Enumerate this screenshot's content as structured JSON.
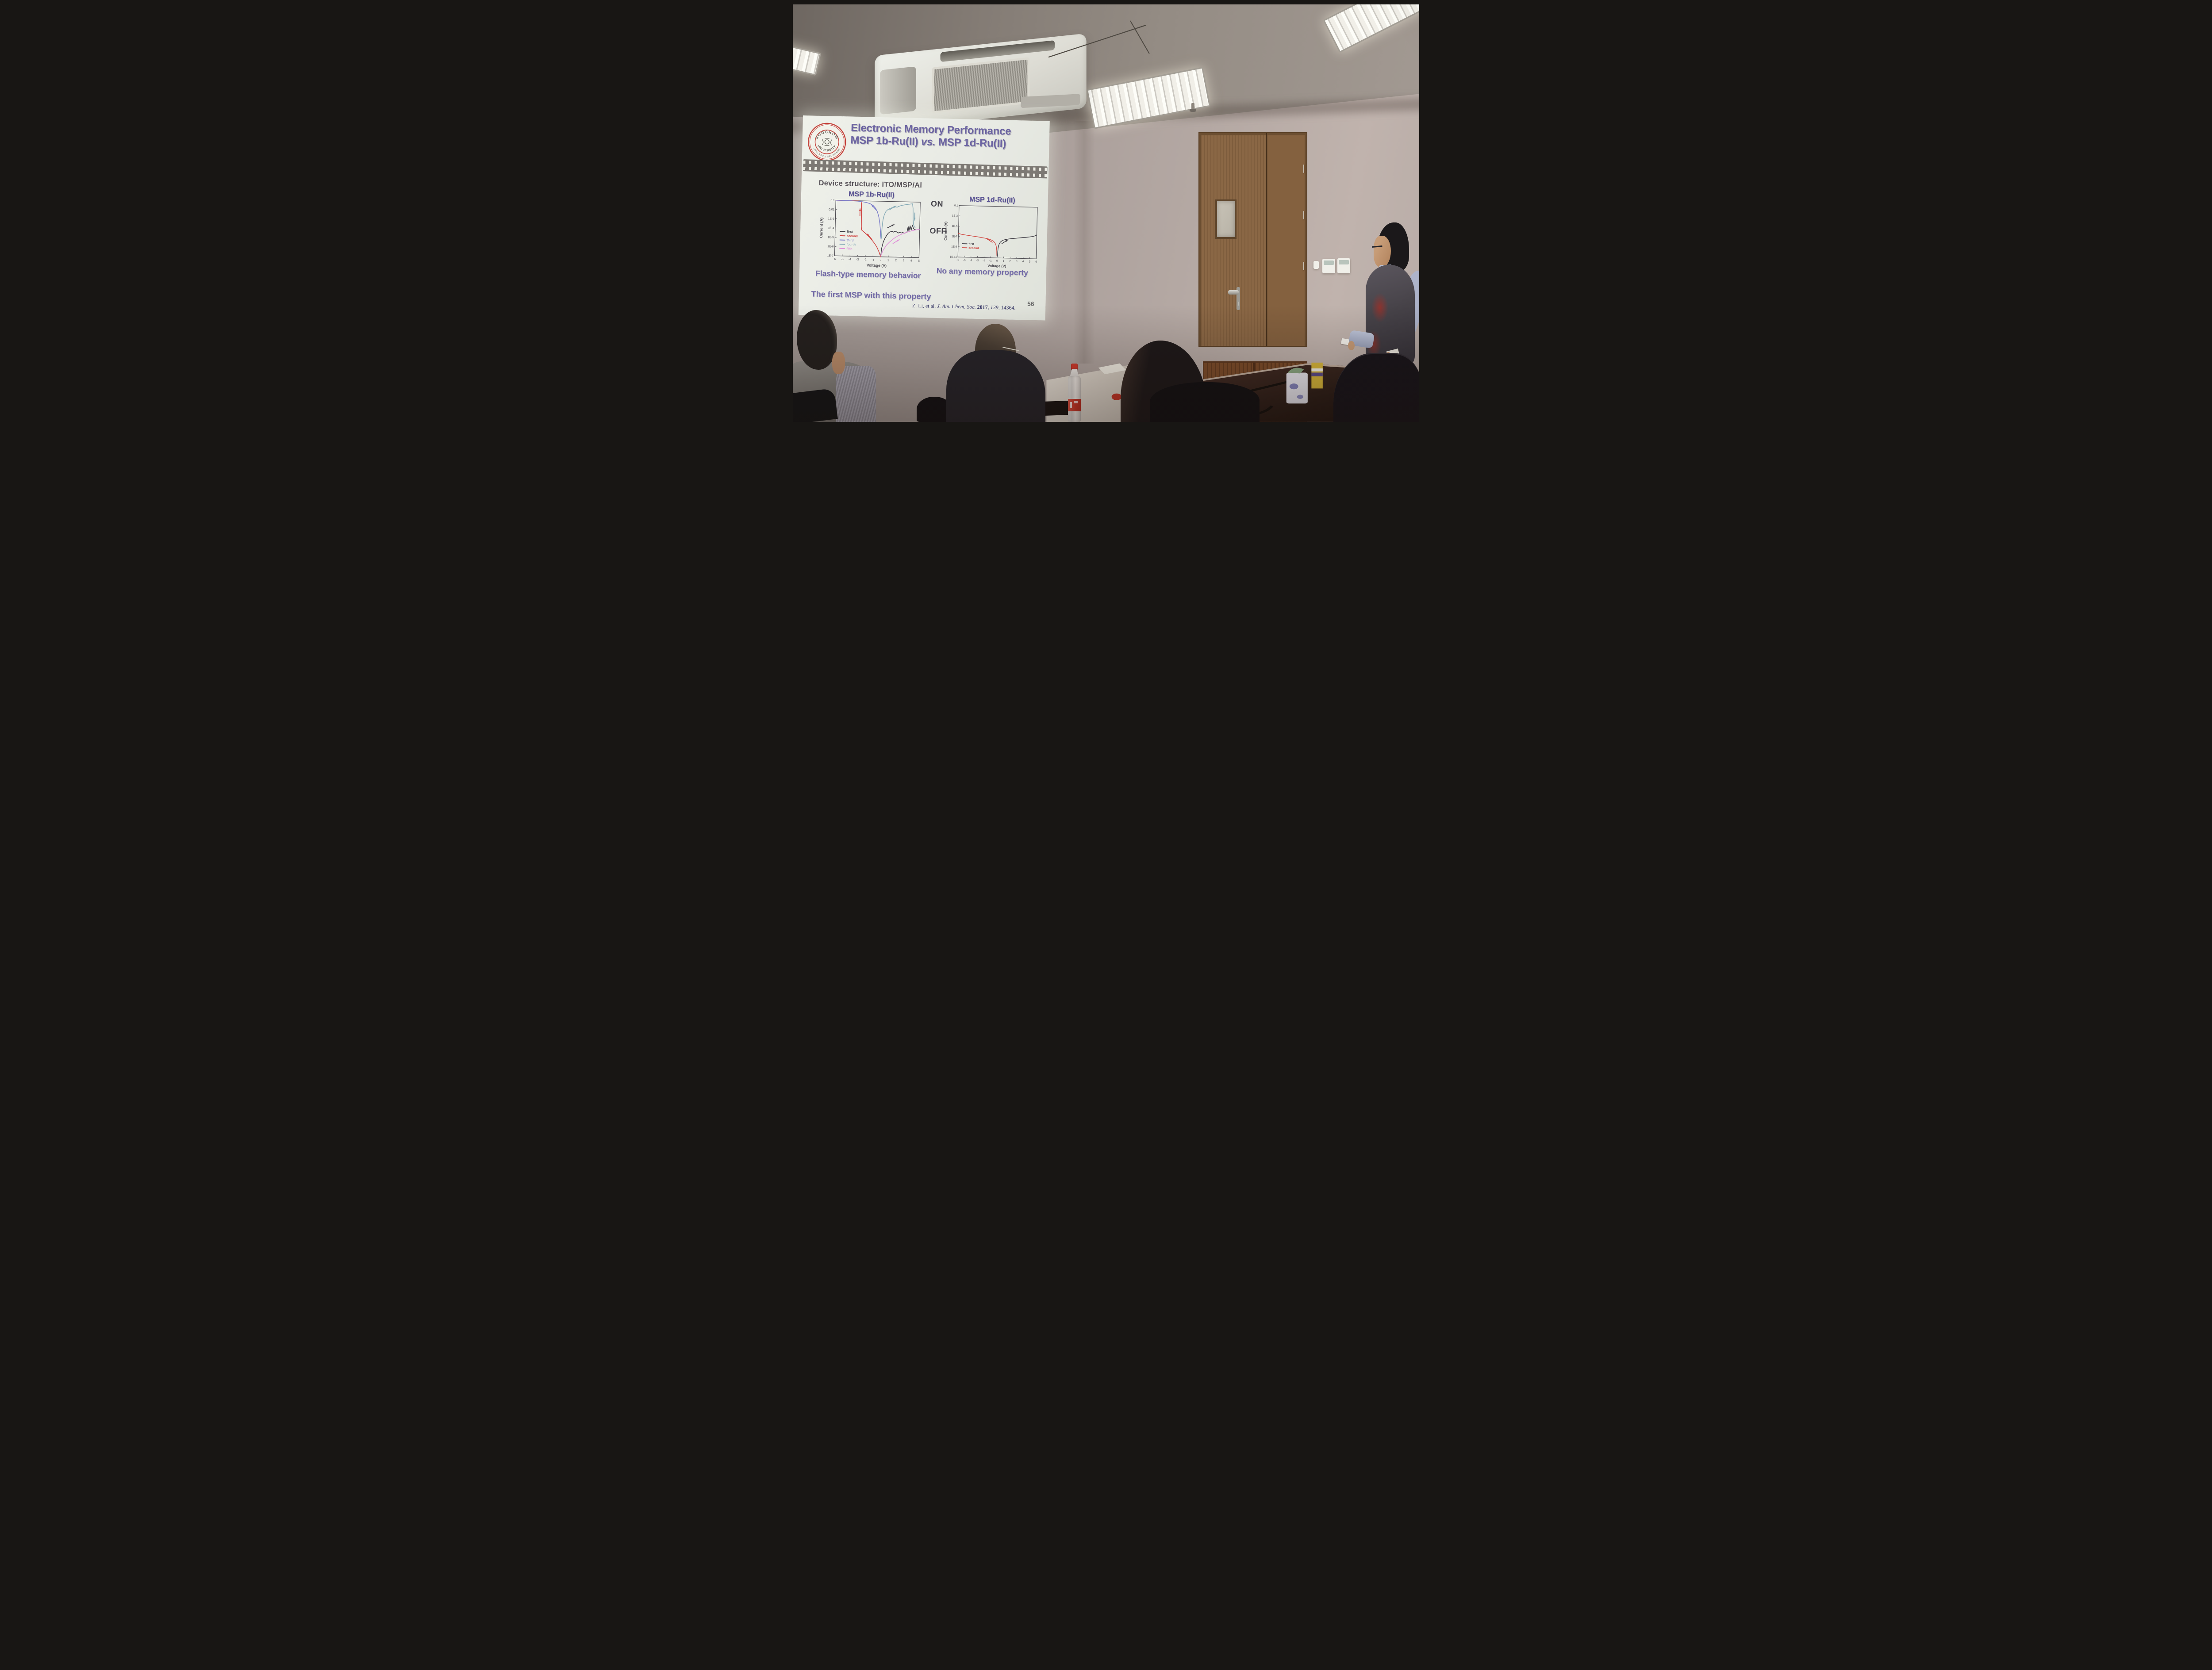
{
  "slide": {
    "title_line1": "Electronic Memory Performance",
    "title_line2_pre": "MSP 1b-Ru(II) ",
    "title_line2_vs": "vs.",
    "title_line2_post": " MSP 1d-Ru(II)",
    "device_structure": "Device structure: ITO/MSP/Al",
    "on_label": "ON",
    "off_label": "OFF",
    "caption_left": "Flash-type memory behavior",
    "caption_right": "No any memory property",
    "caption_bottom": "The first MSP with this property",
    "citation": {
      "p1": "Z. Li, et al. ",
      "p2": "J. Am. Chem. Soc. ",
      "p3": "2017",
      "p4": ", ",
      "p5": "139",
      "p6": ", 14364."
    },
    "slide_number": "56",
    "logo": {
      "top": "SOOCHOW",
      "middle": "UNIVERSITY",
      "motto": "UNTO A FULL GROWN MAN"
    }
  },
  "chart_data": [
    {
      "type": "line",
      "title": "MSP 1b-Ru(II)",
      "xlabel": "Voltage (V)",
      "ylabel": "Current (A)",
      "xlim": [
        -6,
        5
      ],
      "ylim": [
        "1E-7",
        "0.1"
      ],
      "ylog": true,
      "grid": false,
      "xticks": [
        -6,
        -5,
        -4,
        -3,
        -2,
        -1,
        0,
        1,
        2,
        3,
        4,
        5
      ],
      "yticks": [
        "0.1",
        "0.01",
        "1E-3",
        "1E-4",
        "1E-5",
        "1E-6",
        "1E-7"
      ],
      "axis_color": "#4c4a50",
      "legend_position": "lower-left",
      "legend_frac": [
        0.055,
        0.56
      ],
      "series": [
        {
          "name": "first",
          "color": "#3d3a42",
          "x": [
            0,
            0.1,
            0.3,
            0.5,
            0.7,
            0.9,
            1.1,
            1.4,
            1.6,
            1.8,
            2.0,
            2.2,
            2.4,
            2.6,
            2.8,
            3.0,
            3.2,
            3.35,
            3.5,
            3.6,
            3.75,
            3.9,
            4.05,
            4.2,
            4.35,
            4.5
          ],
          "y": [
            1e-07,
            8e-07,
            4e-06,
            1e-05,
            2e-05,
            3.5e-05,
            5e-05,
            6e-05,
            5e-05,
            6.5e-05,
            5.5e-05,
            4e-05,
            5e-05,
            4.2e-05,
            4.8e-05,
            4e-05,
            4.6e-05,
            5e-05,
            0.00022,
            7e-05,
            0.00026,
            9e-05,
            0.00032,
            0.00013,
            0.00011,
            0.0001
          ]
        },
        {
          "name": "second",
          "color": "#cf4340",
          "x": [
            0,
            -0.2,
            -0.5,
            -0.8,
            -1.1,
            -1.5,
            -1.9,
            -2.2,
            -2.45,
            -2.55,
            -2.6,
            -2.62,
            -2.65,
            -2.7,
            -3.0,
            -3.6,
            -4.4,
            -5.2,
            -6.0
          ],
          "y": [
            1e-07,
            3e-07,
            1e-06,
            2.5e-06,
            5e-06,
            1.2e-05,
            2.5e-05,
            4e-05,
            6e-05,
            7e-05,
            0.00015,
            0.003,
            0.05,
            0.09,
            0.095,
            0.098,
            0.1,
            0.1,
            0.1
          ]
        },
        {
          "name": "third",
          "color": "#7b7cc9",
          "x": [
            -6,
            -5,
            -4,
            -3.2,
            -2.6,
            -2.0,
            -1.5,
            -1.1,
            -0.8,
            -0.55,
            -0.35,
            -0.2,
            -0.1,
            -0.04,
            0
          ],
          "y": [
            0.1,
            0.099,
            0.096,
            0.09,
            0.082,
            0.068,
            0.05,
            0.032,
            0.017,
            0.007,
            0.002,
            0.0004,
            6e-05,
            1.5e-05,
            8e-06
          ]
        },
        {
          "name": "fourth",
          "color": "#85aab6",
          "x": [
            0.04,
            0.1,
            0.2,
            0.35,
            0.55,
            0.8,
            1.1,
            1.4,
            1.7,
            2.0,
            2.3,
            2.6,
            2.9,
            3.2,
            3.5,
            3.8,
            4.0,
            4.08,
            4.12,
            4.18,
            4.28,
            4.4
          ],
          "y": [
            1e-05,
            0.00015,
            0.001,
            0.0035,
            0.008,
            0.013,
            0.018,
            0.022,
            0.027,
            0.025,
            0.033,
            0.04,
            0.045,
            0.05,
            0.055,
            0.06,
            0.063,
            0.02,
            0.0012,
            0.0004,
            0.00022,
            0.00018
          ]
        },
        {
          "name": "fifth",
          "color": "#df8fd8",
          "x": [
            0,
            0.3,
            0.7,
            1.1,
            1.5,
            1.9,
            2.3,
            2.7,
            3.1,
            3.5,
            3.9,
            4.3,
            4.7,
            5.0
          ],
          "y": [
            1.2e-07,
            5e-07,
            1.8e-06,
            4e-06,
            8e-06,
            1.4e-05,
            2.2e-05,
            3.2e-05,
            4.4e-05,
            5.8e-05,
            7.4e-05,
            9e-05,
            0.000105,
            0.00012
          ]
        }
      ],
      "arrows": [
        {
          "x": -2.82,
          "logy": -2.3,
          "angle": -90,
          "color": "#cf4340"
        },
        {
          "x": -1.45,
          "logy": -4.9,
          "angle": -132,
          "color": "#cf4340"
        },
        {
          "x": -0.95,
          "logy": -1.75,
          "angle": -133,
          "color": "#7b7cc9"
        },
        {
          "x": 1.35,
          "logy": -1.72,
          "angle": -33,
          "color": "#85aab6"
        },
        {
          "x": 4.32,
          "logy": -2.5,
          "angle": 90,
          "color": "#85aab6"
        },
        {
          "x": 1.15,
          "logy": -3.7,
          "angle": -28,
          "color": "#3d3a42"
        },
        {
          "x": 1.9,
          "logy": -5.35,
          "angle": -33,
          "color": "#df8fd8"
        }
      ]
    },
    {
      "type": "line",
      "title": "MSP 1d-Ru(II)",
      "xlabel": "Voltage (V)",
      "ylabel": "Current (A)",
      "xlim": [
        -6,
        6
      ],
      "ylim": [
        "1E-11",
        "0.1"
      ],
      "ylog": true,
      "grid": false,
      "xticks": [
        -6,
        -5,
        -4,
        -3,
        -2,
        -1,
        0,
        1,
        2,
        3,
        4,
        5,
        6
      ],
      "yticks": [
        "0.1",
        "1E-3",
        "1E-5",
        "1E-7",
        "1E-9",
        "1E-11"
      ],
      "axis_color": "#4c4a50",
      "legend_position": "lower-left",
      "legend_frac": [
        0.05,
        0.74
      ],
      "series": [
        {
          "name": "first",
          "color": "#3d3a42",
          "x": [
            0.04,
            0.08,
            0.12,
            0.2,
            0.3,
            0.45,
            0.65,
            0.9,
            1.2,
            1.6,
            2.0,
            2.5,
            3.0,
            3.5,
            4.0,
            4.5,
            5.0,
            5.4,
            5.7,
            5.9,
            6.0
          ],
          "y": [
            2e-11,
            1.5e-10,
            8e-10,
            2.5e-09,
            6e-09,
            1.2e-08,
            2e-08,
            3e-08,
            4e-08,
            5e-08,
            6e-08,
            7e-08,
            8.5e-08,
            1e-07,
            1.2e-07,
            1.4e-07,
            1.7e-07,
            2.1e-07,
            2.7e-07,
            3.5e-07,
            4.5e-07
          ]
        },
        {
          "name": "second",
          "color": "#d04a44",
          "x": [
            -0.04,
            -0.08,
            -0.15,
            -0.25,
            -0.4,
            -0.6,
            -0.85,
            -1.15,
            -1.5,
            -1.9,
            -2.4,
            -2.9,
            -3.5,
            -4.1,
            -4.7,
            -5.3,
            -5.8,
            -6.0
          ],
          "y": [
            3e-11,
            3e-10,
            1.5e-09,
            4e-09,
            9e-09,
            1.6e-08,
            2.5e-08,
            3.6e-08,
            4.8e-08,
            6e-08,
            7.5e-08,
            9.5e-08,
            1.2e-07,
            1.5e-07,
            1.9e-07,
            2.4e-07,
            3.2e-07,
            4e-07
          ]
        }
      ],
      "arrows": [
        {
          "x": 1.05,
          "logy": -7.9,
          "angle": -33,
          "color": "#3d3a42"
        },
        {
          "x": -1.15,
          "logy": -7.7,
          "angle": -147,
          "color": "#d04a44"
        }
      ]
    }
  ],
  "colors": {
    "slide_background": "#eceee8",
    "title_purple": "#6c64a2",
    "caption_purple": "#746ca8",
    "device_text_gray": "#585359",
    "axis_gray": "#4c4a50",
    "citation_navy": "#3a3a68",
    "logo_seal_red": "#c5433c",
    "door_wood": "#8a6745",
    "cabinet_wood": "#7c4c2a",
    "table_dark": "#2a1c16",
    "bottle_cap_red": "#cf3a2c",
    "presenter_shirt_blue": "#aeb5cc",
    "presenter_vest_gray": "#46424a",
    "vest_red_accent": "#993029"
  }
}
